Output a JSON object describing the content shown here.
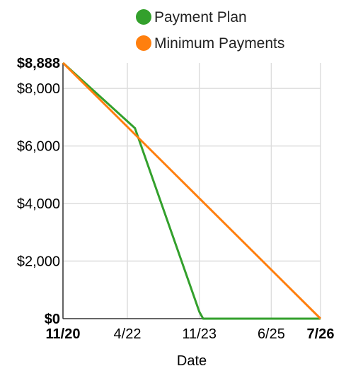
{
  "chart_data": {
    "type": "line",
    "xlabel": "Date",
    "ylabel": "",
    "x_ticks": [
      {
        "label": "11/20",
        "value": 0,
        "bold": true
      },
      {
        "label": "4/22",
        "value": 17,
        "bold": false
      },
      {
        "label": "11/23",
        "value": 36,
        "bold": false
      },
      {
        "label": "6/25",
        "value": 55,
        "bold": false
      },
      {
        "label": "7/26",
        "value": 68,
        "bold": true
      }
    ],
    "y_ticks": [
      {
        "label": "$0",
        "value": 0,
        "bold": true
      },
      {
        "label": "$2,000",
        "value": 2000,
        "bold": false
      },
      {
        "label": "$4,000",
        "value": 4000,
        "bold": false
      },
      {
        "label": "$6,000",
        "value": 6000,
        "bold": false
      },
      {
        "label": "$8,000",
        "value": 8000,
        "bold": false
      },
      {
        "label": "$8,888",
        "value": 8888,
        "bold": true
      }
    ],
    "xlim": [
      0,
      68
    ],
    "ylim": [
      0,
      8888
    ],
    "grid": true,
    "legend_position": "top-right",
    "series": [
      {
        "name": "Payment Plan",
        "color": "#33a02c",
        "points": [
          [
            0,
            8888
          ],
          [
            19,
            6620
          ],
          [
            36,
            240
          ],
          [
            37,
            0
          ],
          [
            68,
            0
          ]
        ]
      },
      {
        "name": "Minimum Payments",
        "color": "#ff7f0e",
        "points": [
          [
            0,
            8888
          ],
          [
            68,
            0
          ]
        ]
      }
    ]
  }
}
